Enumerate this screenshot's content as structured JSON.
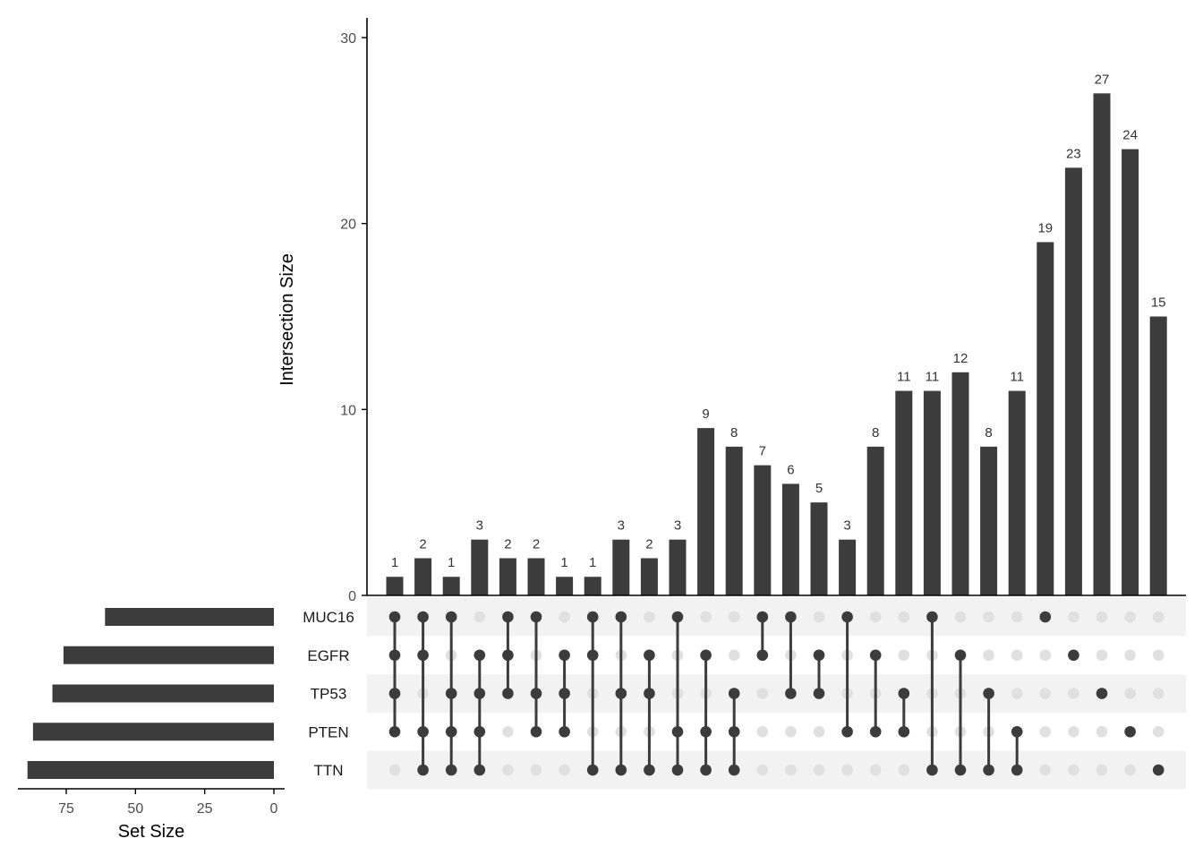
{
  "chart_data": {
    "type": "bar",
    "subtype": "upset",
    "colors": {
      "bar": "#3c3c3c",
      "dot_active": "#3c3c3c",
      "dot_inactive": "#e0e0e0",
      "row_stripe": "#f2f2f2",
      "axis": "#000000"
    },
    "intersection_ylabel": "Intersection Size",
    "intersection_ylim": [
      0,
      30
    ],
    "intersection_yticks": [
      0,
      10,
      20,
      30
    ],
    "setsize_xlabel": "Set Size",
    "setsize_xticks": [
      75,
      50,
      25,
      0
    ],
    "setsize_xlim": [
      0,
      90
    ],
    "sets": [
      {
        "name": "MUC16",
        "size": 61
      },
      {
        "name": "EGFR",
        "size": 76
      },
      {
        "name": "TP53",
        "size": 80
      },
      {
        "name": "PTEN",
        "size": 87
      },
      {
        "name": "TTN",
        "size": 89
      }
    ],
    "intersections": [
      {
        "value": 1,
        "sets": [
          "MUC16",
          "EGFR",
          "TP53",
          "PTEN"
        ]
      },
      {
        "value": 2,
        "sets": [
          "MUC16",
          "EGFR",
          "PTEN",
          "TTN"
        ]
      },
      {
        "value": 1,
        "sets": [
          "MUC16",
          "TP53",
          "PTEN",
          "TTN"
        ]
      },
      {
        "value": 3,
        "sets": [
          "EGFR",
          "TP53",
          "PTEN",
          "TTN"
        ]
      },
      {
        "value": 2,
        "sets": [
          "MUC16",
          "EGFR",
          "TP53"
        ]
      },
      {
        "value": 2,
        "sets": [
          "MUC16",
          "TP53",
          "PTEN"
        ]
      },
      {
        "value": 1,
        "sets": [
          "EGFR",
          "TP53",
          "PTEN"
        ]
      },
      {
        "value": 1,
        "sets": [
          "MUC16",
          "EGFR",
          "TTN"
        ]
      },
      {
        "value": 3,
        "sets": [
          "MUC16",
          "TP53",
          "TTN"
        ]
      },
      {
        "value": 2,
        "sets": [
          "EGFR",
          "TP53",
          "TTN"
        ]
      },
      {
        "value": 3,
        "sets": [
          "MUC16",
          "PTEN",
          "TTN"
        ]
      },
      {
        "value": 9,
        "sets": [
          "EGFR",
          "PTEN",
          "TTN"
        ]
      },
      {
        "value": 8,
        "sets": [
          "TP53",
          "PTEN",
          "TTN"
        ]
      },
      {
        "value": 7,
        "sets": [
          "MUC16",
          "EGFR"
        ]
      },
      {
        "value": 6,
        "sets": [
          "MUC16",
          "TP53"
        ]
      },
      {
        "value": 5,
        "sets": [
          "EGFR",
          "TP53"
        ]
      },
      {
        "value": 3,
        "sets": [
          "MUC16",
          "PTEN"
        ]
      },
      {
        "value": 8,
        "sets": [
          "EGFR",
          "PTEN"
        ]
      },
      {
        "value": 11,
        "sets": [
          "TP53",
          "PTEN"
        ]
      },
      {
        "value": 11,
        "sets": [
          "MUC16",
          "TTN"
        ]
      },
      {
        "value": 12,
        "sets": [
          "EGFR",
          "TTN"
        ]
      },
      {
        "value": 8,
        "sets": [
          "TP53",
          "TTN"
        ]
      },
      {
        "value": 11,
        "sets": [
          "PTEN",
          "TTN"
        ]
      },
      {
        "value": 19,
        "sets": [
          "MUC16"
        ]
      },
      {
        "value": 23,
        "sets": [
          "EGFR"
        ]
      },
      {
        "value": 27,
        "sets": [
          "TP53"
        ]
      },
      {
        "value": 24,
        "sets": [
          "PTEN"
        ]
      },
      {
        "value": 15,
        "sets": [
          "TTN"
        ]
      }
    ]
  }
}
